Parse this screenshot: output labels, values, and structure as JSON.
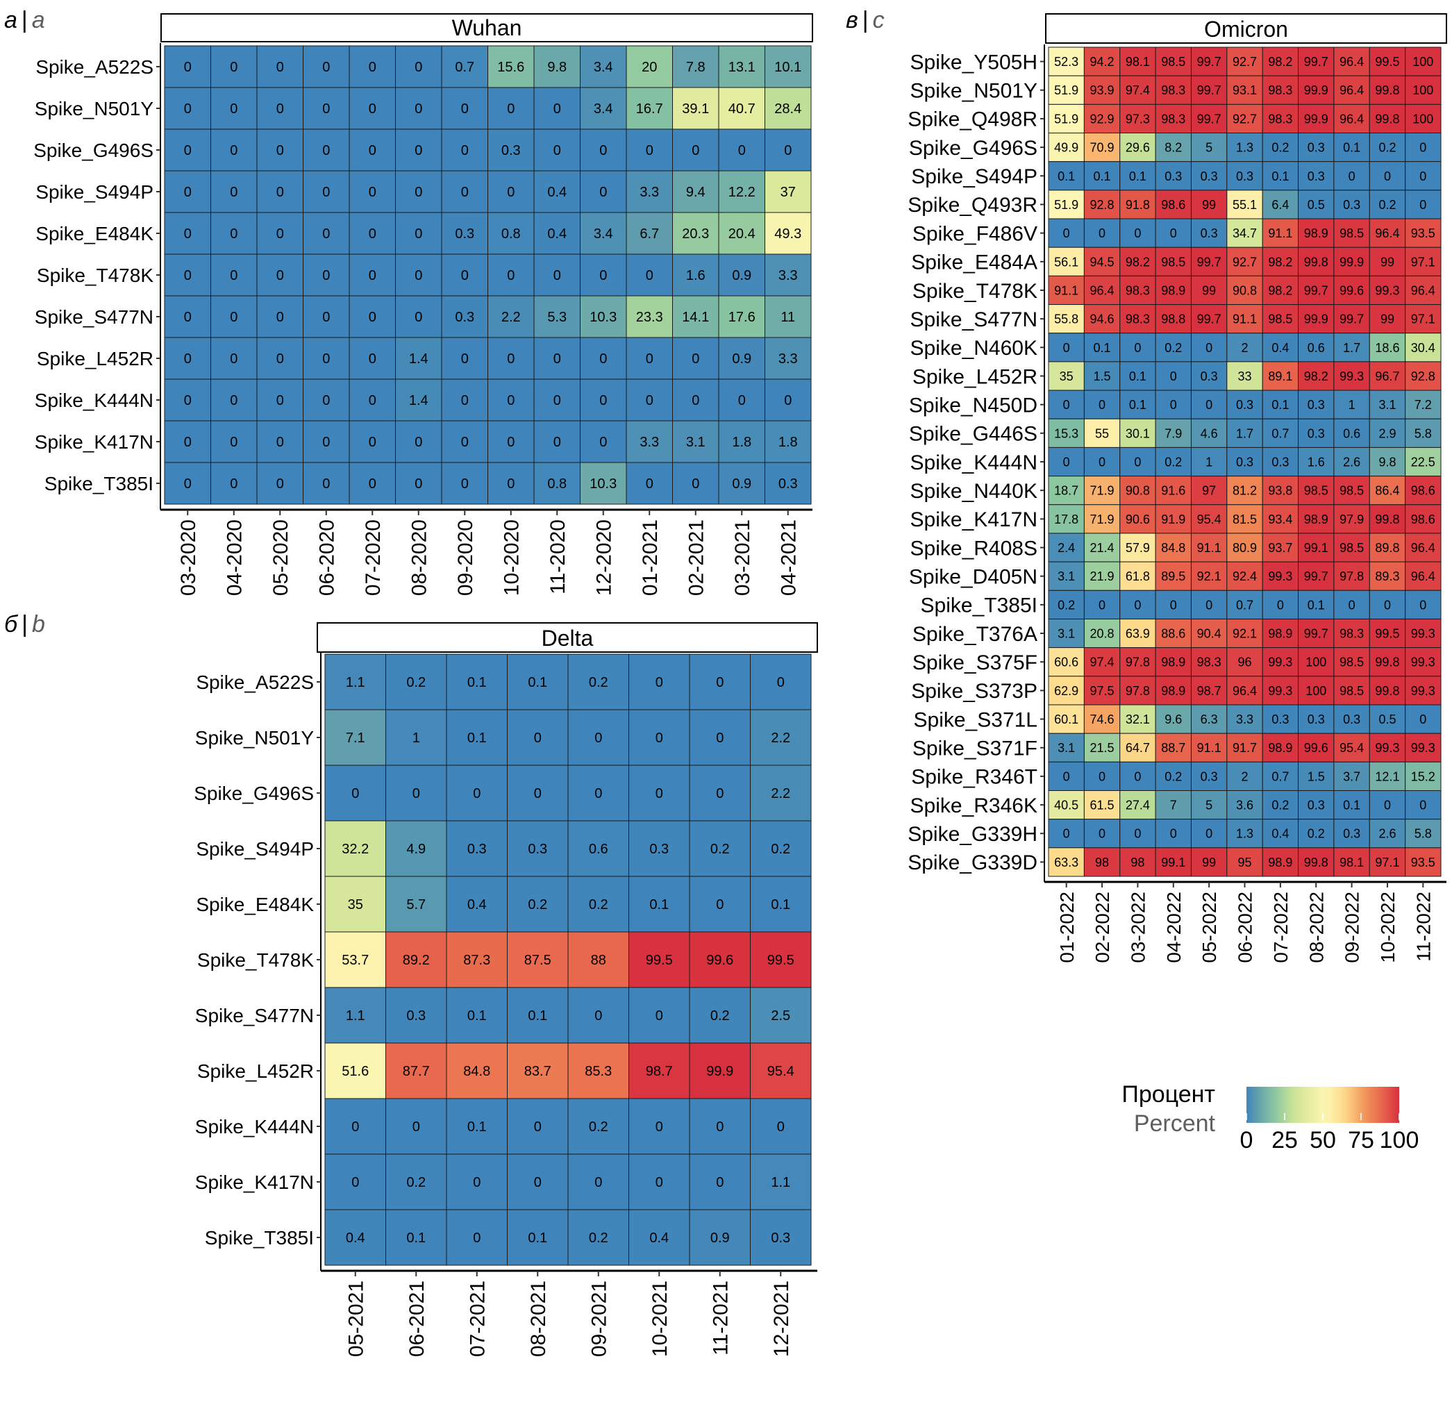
{
  "panels_labels": [
    {
      "cyrillic": "а",
      "latin": "a"
    },
    {
      "cyrillic": "б",
      "latin": "b"
    },
    {
      "cyrillic": "в",
      "latin": "c"
    }
  ],
  "legend": {
    "title_ru": "Процент",
    "title_en": "Percent",
    "ticks": [
      "0",
      "25",
      "50",
      "75",
      "100"
    ],
    "range": [
      0,
      100
    ],
    "palette": [
      "#3f85bb",
      "#89c5a1",
      "#d7e89c",
      "#fdf6b4",
      "#fdd98a",
      "#f29358",
      "#d7303f"
    ]
  },
  "chart_data": [
    {
      "type": "heatmap",
      "title": "Wuhan",
      "xlabel": "",
      "ylabel": "",
      "x": [
        "03-2020",
        "04-2020",
        "05-2020",
        "06-2020",
        "07-2020",
        "08-2020",
        "09-2020",
        "10-2020",
        "11-2020",
        "12-2020",
        "01-2021",
        "02-2021",
        "03-2021",
        "04-2021"
      ],
      "y": [
        "Spike_A522S",
        "Spike_N501Y",
        "Spike_G496S",
        "Spike_S494P",
        "Spike_E484K",
        "Spike_T478K",
        "Spike_S477N",
        "Spike_L452R",
        "Spike_K444N",
        "Spike_K417N",
        "Spike_T385I"
      ],
      "values": [
        [
          0,
          0,
          0,
          0,
          0,
          0,
          0.7,
          15.6,
          9.8,
          3.4,
          20,
          7.8,
          13.1,
          10.1
        ],
        [
          0,
          0,
          0,
          0,
          0,
          0,
          0,
          0,
          0,
          3.4,
          16.7,
          39.1,
          40.7,
          28.4
        ],
        [
          0,
          0,
          0,
          0,
          0,
          0,
          0,
          0.3,
          0,
          0,
          0,
          0,
          0,
          0
        ],
        [
          0,
          0,
          0,
          0,
          0,
          0,
          0,
          0,
          0.4,
          0,
          3.3,
          9.4,
          12.2,
          37
        ],
        [
          0,
          0,
          0,
          0,
          0,
          0,
          0.3,
          0.8,
          0.4,
          3.4,
          6.7,
          20.3,
          20.4,
          49.3
        ],
        [
          0,
          0,
          0,
          0,
          0,
          0,
          0,
          0,
          0,
          0,
          0,
          1.6,
          0.9,
          3.3
        ],
        [
          0,
          0,
          0,
          0,
          0,
          0,
          0.3,
          2.2,
          5.3,
          10.3,
          23.3,
          14.1,
          17.6,
          11
        ],
        [
          0,
          0,
          0,
          0,
          0,
          1.4,
          0,
          0,
          0,
          0,
          0,
          0,
          0.9,
          3.3
        ],
        [
          0,
          0,
          0,
          0,
          0,
          1.4,
          0,
          0,
          0,
          0,
          0,
          0,
          0,
          0
        ],
        [
          0,
          0,
          0,
          0,
          0,
          0,
          0,
          0,
          0,
          0,
          3.3,
          3.1,
          1.8,
          1.8
        ],
        [
          0,
          0,
          0,
          0,
          0,
          0,
          0,
          0,
          0.8,
          10.3,
          0,
          0,
          0.9,
          0.3
        ]
      ],
      "color_range": [
        0,
        100
      ]
    },
    {
      "type": "heatmap",
      "title": "Delta",
      "xlabel": "",
      "ylabel": "",
      "x": [
        "05-2021",
        "06-2021",
        "07-2021",
        "08-2021",
        "09-2021",
        "10-2021",
        "11-2021",
        "12-2021"
      ],
      "y": [
        "Spike_A522S",
        "Spike_N501Y",
        "Spike_G496S",
        "Spike_S494P",
        "Spike_E484K",
        "Spike_T478K",
        "Spike_S477N",
        "Spike_L452R",
        "Spike_K444N",
        "Spike_K417N",
        "Spike_T385I"
      ],
      "values": [
        [
          1.1,
          0.2,
          0.1,
          0.1,
          0.2,
          0,
          0,
          0
        ],
        [
          7.1,
          1,
          0.1,
          0,
          0,
          0,
          0,
          2.2
        ],
        [
          0,
          0,
          0,
          0,
          0,
          0,
          0,
          2.2
        ],
        [
          32.2,
          4.9,
          0.3,
          0.3,
          0.6,
          0.3,
          0.2,
          0.2
        ],
        [
          35,
          5.7,
          0.4,
          0.2,
          0.2,
          0.1,
          0,
          0.1
        ],
        [
          53.7,
          89.2,
          87.3,
          87.5,
          88,
          99.5,
          99.6,
          99.5
        ],
        [
          1.1,
          0.3,
          0.1,
          0.1,
          0,
          0,
          0.2,
          2.5
        ],
        [
          51.6,
          87.7,
          84.8,
          83.7,
          85.3,
          98.7,
          99.9,
          95.4
        ],
        [
          0,
          0,
          0.1,
          0,
          0.2,
          0,
          0,
          0
        ],
        [
          0,
          0.2,
          0,
          0,
          0,
          0,
          0,
          1.1
        ],
        [
          0.4,
          0.1,
          0,
          0.1,
          0.2,
          0.4,
          0.9,
          0.3
        ]
      ],
      "color_range": [
        0,
        100
      ]
    },
    {
      "type": "heatmap",
      "title": "Omicron",
      "xlabel": "",
      "ylabel": "",
      "x": [
        "01-2022",
        "02-2022",
        "03-2022",
        "04-2022",
        "05-2022",
        "06-2022",
        "07-2022",
        "08-2022",
        "09-2022",
        "10-2022",
        "11-2022"
      ],
      "y": [
        "Spike_Y505H",
        "Spike_N501Y",
        "Spike_Q498R",
        "Spike_G496S",
        "Spike_S494P",
        "Spike_Q493R",
        "Spike_F486V",
        "Spike_E484A",
        "Spike_T478K",
        "Spike_S477N",
        "Spike_N460K",
        "Spike_L452R",
        "Spike_N450D",
        "Spike_G446S",
        "Spike_K444N",
        "Spike_N440K",
        "Spike_K417N",
        "Spike_R408S",
        "Spike_D405N",
        "Spike_T385I",
        "Spike_T376A",
        "Spike_S375F",
        "Spike_S373P",
        "Spike_S371L",
        "Spike_S371F",
        "Spike_R346T",
        "Spike_R346K",
        "Spike_G339H",
        "Spike_G339D"
      ],
      "values": [
        [
          52.3,
          94.2,
          98.1,
          98.5,
          99.7,
          92.7,
          98.2,
          99.7,
          96.4,
          99.5,
          100
        ],
        [
          51.9,
          93.9,
          97.4,
          98.3,
          99.7,
          93.1,
          98.3,
          99.9,
          96.4,
          99.8,
          100
        ],
        [
          51.9,
          92.9,
          97.3,
          98.3,
          99.7,
          92.7,
          98.3,
          99.9,
          96.4,
          99.8,
          100
        ],
        [
          49.9,
          70.9,
          29.6,
          8.2,
          5,
          1.3,
          0.2,
          0.3,
          0.1,
          0.2,
          0
        ],
        [
          0.1,
          0.1,
          0.1,
          0.3,
          0.3,
          0.3,
          0.1,
          0.3,
          0,
          0,
          0
        ],
        [
          51.9,
          92.8,
          91.8,
          98.6,
          99,
          55.1,
          6.4,
          0.5,
          0.3,
          0.2,
          0
        ],
        [
          0,
          0,
          0,
          0,
          0.3,
          34.7,
          91.1,
          98.9,
          98.5,
          96.4,
          93.5
        ],
        [
          56.1,
          94.5,
          98.2,
          98.5,
          99.7,
          92.7,
          98.2,
          99.8,
          99.9,
          99,
          97.1
        ],
        [
          91.1,
          96.4,
          98.3,
          98.9,
          99,
          90.8,
          98.2,
          99.7,
          99.6,
          99.3,
          96.4
        ],
        [
          55.8,
          94.6,
          98.3,
          98.8,
          99.7,
          91.1,
          98.5,
          99.9,
          99.7,
          99,
          97.1
        ],
        [
          0,
          0.1,
          0,
          0.2,
          0,
          2,
          0.4,
          0.6,
          1.7,
          18.6,
          30.4
        ],
        [
          35,
          1.5,
          0.1,
          0,
          0.3,
          33,
          89.1,
          98.2,
          99.3,
          96.7,
          92.8
        ],
        [
          0,
          0,
          0.1,
          0,
          0,
          0.3,
          0.1,
          0.3,
          1,
          3.1,
          7.2
        ],
        [
          15.3,
          55,
          30.1,
          7.9,
          4.6,
          1.7,
          0.7,
          0.3,
          0.6,
          2.9,
          5.8
        ],
        [
          0,
          0,
          0,
          0.2,
          1,
          0.3,
          0.3,
          1.6,
          2.6,
          9.8,
          22.5
        ],
        [
          18.7,
          71.9,
          90.8,
          91.6,
          97,
          81.2,
          93.8,
          98.5,
          98.5,
          86.4,
          98.6
        ],
        [
          17.8,
          71.9,
          90.6,
          91.9,
          95.4,
          81.5,
          93.4,
          98.9,
          97.9,
          99.8,
          98.6
        ],
        [
          2.4,
          21.4,
          57.9,
          84.8,
          91.1,
          80.9,
          93.7,
          99.1,
          98.5,
          89.8,
          96.4
        ],
        [
          3.1,
          21.9,
          61.8,
          89.5,
          92.1,
          92.4,
          99.3,
          99.7,
          97.8,
          89.3,
          96.4
        ],
        [
          0.2,
          0,
          0,
          0,
          0,
          0.7,
          0,
          0.1,
          0,
          0,
          0
        ],
        [
          3.1,
          20.8,
          63.9,
          88.6,
          90.4,
          92.1,
          98.9,
          99.7,
          98.3,
          99.5,
          99.3
        ],
        [
          60.6,
          97.4,
          97.8,
          98.9,
          98.3,
          96,
          99.3,
          100,
          98.5,
          99.8,
          99.3
        ],
        [
          62.9,
          97.5,
          97.8,
          98.9,
          98.7,
          96.4,
          99.3,
          100,
          98.5,
          99.8,
          99.3
        ],
        [
          60.1,
          74.6,
          32.1,
          9.6,
          6.3,
          3.3,
          0.3,
          0.3,
          0.3,
          0.5,
          0
        ],
        [
          3.1,
          21.5,
          64.7,
          88.7,
          91.1,
          91.7,
          98.9,
          99.6,
          95.4,
          99.3,
          99.3
        ],
        [
          0,
          0,
          0,
          0.2,
          0.3,
          2,
          0.7,
          1.5,
          3.7,
          12.1,
          15.2
        ],
        [
          40.5,
          61.5,
          27.4,
          7,
          5,
          3.6,
          0.2,
          0.3,
          0.1,
          0,
          0
        ],
        [
          0,
          0,
          0,
          0,
          0,
          1.3,
          0.4,
          0.2,
          0.3,
          2.6,
          5.8
        ],
        [
          63.3,
          98,
          98,
          99.1,
          99,
          95,
          98.9,
          99.8,
          98.1,
          97.1,
          93.5
        ]
      ],
      "color_range": [
        0,
        100
      ]
    }
  ]
}
